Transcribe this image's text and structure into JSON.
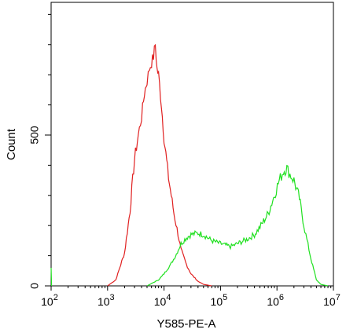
{
  "chart_data": {
    "type": "line",
    "title": "",
    "xlabel": "Y585-PE-A",
    "ylabel": "Count",
    "x_scale": "log",
    "xlim": [
      100,
      10000000
    ],
    "ylim": [
      0,
      940
    ],
    "grid": false,
    "legend": "none",
    "x_ticks": [
      {
        "value": 100,
        "base": "10",
        "exp": "2"
      },
      {
        "value": 1000,
        "base": "10",
        "exp": "3"
      },
      {
        "value": 10000,
        "base": "10",
        "exp": "4"
      },
      {
        "value": 100000,
        "base": "10",
        "exp": "5"
      },
      {
        "value": 1000000,
        "base": "10",
        "exp": "6"
      },
      {
        "value": 10000000,
        "base": "10",
        "exp": "7"
      }
    ],
    "y_ticks": [
      {
        "value": 0,
        "label": "0"
      },
      {
        "value": 500,
        "label": "500"
      }
    ],
    "y_minor_ticks": [
      100,
      200,
      300,
      400,
      600,
      700,
      800,
      900
    ],
    "series": [
      {
        "color": "#e02020",
        "x": [
          1000,
          1400,
          2000,
          2500,
          3000,
          3500,
          4000,
          4500,
          5000,
          5500,
          6000,
          6500,
          7000,
          7500,
          8000,
          9000,
          10000,
          12000,
          15000,
          20000,
          25000,
          30000,
          40000,
          50000,
          70000
        ],
        "y": [
          0,
          20,
          110,
          250,
          420,
          500,
          560,
          640,
          680,
          720,
          740,
          760,
          800,
          720,
          700,
          600,
          490,
          360,
          240,
          120,
          70,
          40,
          15,
          5,
          0
        ]
      },
      {
        "color": "#20e020",
        "x": [
          5000,
          8000,
          10000,
          13000,
          16000,
          20000,
          25000,
          30000,
          40000,
          50000,
          70000,
          100000,
          150000,
          200000,
          300000,
          400000,
          500000,
          700000,
          900000,
          1100000,
          1300000,
          1500000,
          1700000,
          2000000,
          2500000,
          3000000,
          4000000,
          5000000,
          6000000,
          8000000
        ],
        "y": [
          0,
          20,
          40,
          70,
          100,
          140,
          160,
          170,
          175,
          170,
          150,
          140,
          130,
          140,
          155,
          170,
          195,
          240,
          300,
          350,
          380,
          390,
          370,
          350,
          290,
          200,
          90,
          20,
          5,
          0
        ]
      },
      {
        "color": "#20e020",
        "x": [
          100,
          102
        ],
        "y": [
          60,
          0
        ]
      }
    ]
  }
}
